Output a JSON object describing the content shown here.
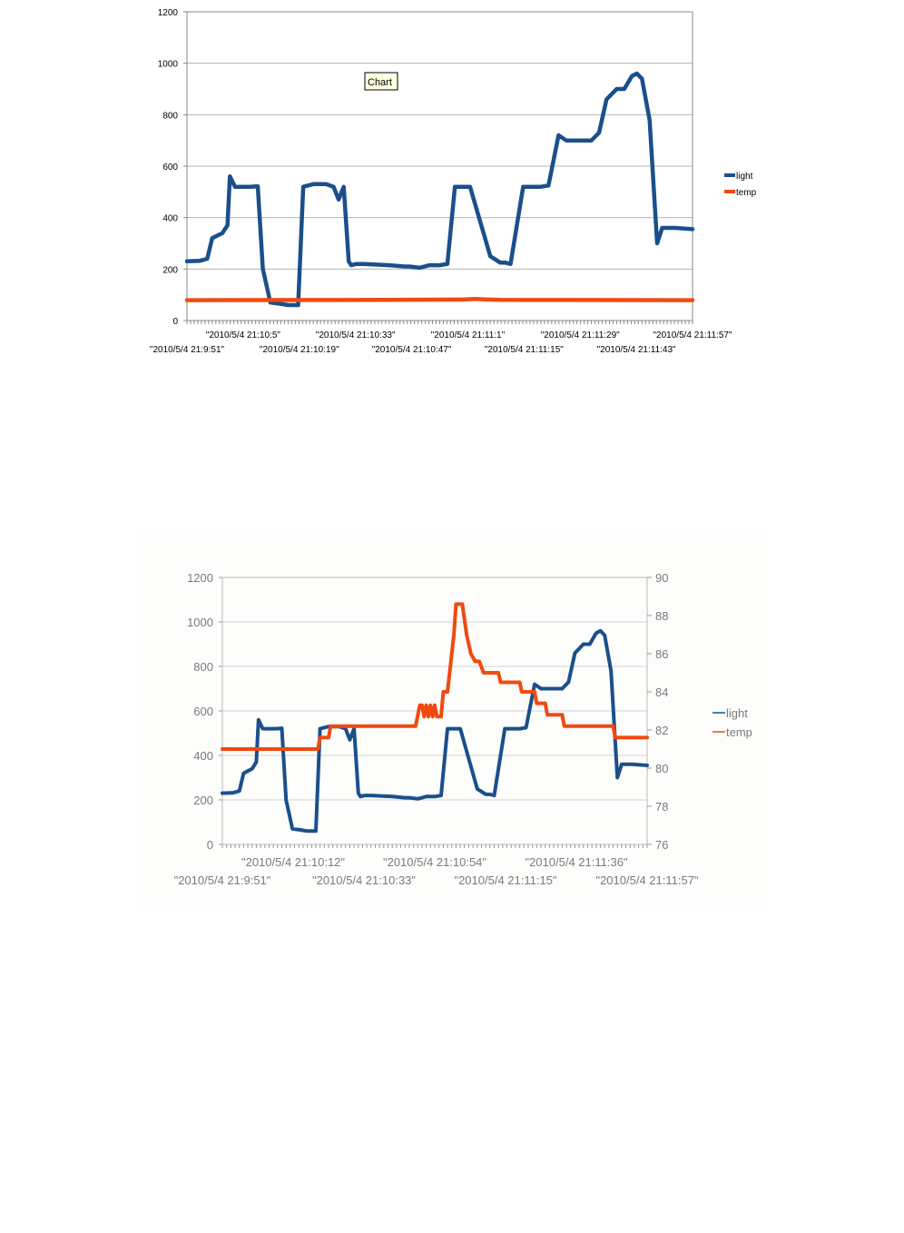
{
  "tooltip": "Chart",
  "chart_data": [
    {
      "type": "line",
      "axes": "single",
      "ylim": [
        0,
        1200
      ],
      "yticks": [
        0,
        200,
        400,
        600,
        800,
        1000,
        1200
      ],
      "grid": true,
      "legend_position": "right",
      "xtick_labels": [
        "\"2010/5/4 21:9:51\"",
        "\"2010/5/4 21:10:5\"",
        "\"2010/5/4 21:10:19\"",
        "\"2010/5/4 21:10:33\"",
        "\"2010/5/4 21:10:47\"",
        "\"2010/5/4 21:11:1\"",
        "\"2010/5/4 21:11:15\"",
        "\"2010/5/4 21:11:29\"",
        "\"2010/5/4 21:11:43\"",
        "\"2010/5/4 21:11:57\""
      ],
      "series": [
        {
          "name": "light",
          "color": "#1b4f8c",
          "x": [
            0,
            5,
            8,
            10,
            14,
            16,
            17,
            19,
            25,
            28,
            30,
            33,
            37,
            40,
            44,
            46,
            50,
            55,
            58,
            60,
            62,
            64,
            65,
            67,
            68,
            70,
            80,
            86,
            88,
            92,
            96,
            100,
            103,
            106,
            112,
            120,
            124,
            126,
            128,
            133,
            137,
            140,
            143,
            147,
            150,
            153,
            156,
            160,
            163,
            166,
            170,
            173,
            176,
            178,
            180,
            183,
            186,
            188,
            193,
            200
          ],
          "values": [
            230,
            232,
            240,
            320,
            340,
            370,
            560,
            520,
            520,
            522,
            200,
            70,
            65,
            60,
            60,
            520,
            530,
            530,
            520,
            470,
            520,
            230,
            215,
            220,
            220,
            220,
            215,
            210,
            210,
            205,
            215,
            215,
            220,
            520,
            520,
            250,
            225,
            225,
            220,
            520,
            520,
            520,
            525,
            720,
            700,
            700,
            700,
            700,
            730,
            860,
            900,
            900,
            950,
            960,
            940,
            780,
            300,
            360,
            360,
            355
          ]
        },
        {
          "name": "temp",
          "color": "#f04a10",
          "x": [
            0,
            80,
            110,
            114,
            118,
            124,
            200
          ],
          "values": [
            79,
            80,
            82,
            84,
            82,
            80,
            79
          ]
        }
      ]
    },
    {
      "type": "line",
      "axes": "dual",
      "ylim": [
        0,
        1200
      ],
      "y2lim": [
        76,
        90
      ],
      "yticks": [
        0,
        200,
        400,
        600,
        800,
        1000,
        1200
      ],
      "y2ticks": [
        76,
        78,
        80,
        82,
        84,
        86,
        88,
        90
      ],
      "grid": true,
      "legend_position": "right",
      "xtick_labels": [
        "\"2010/5/4 21:9:51\"",
        "\"2010/5/4 21:10:12\"",
        "\"2010/5/4 21:10:33\"",
        "\"2010/5/4 21:10:54\"",
        "\"2010/5/4 21:11:15\"",
        "\"2010/5/4 21:11:36\"",
        "\"2010/5/4 21:11:57\""
      ],
      "series": [
        {
          "name": "light",
          "color": "#1b4f8c",
          "x": [
            0,
            5,
            8,
            10,
            14,
            16,
            17,
            19,
            25,
            28,
            30,
            33,
            37,
            40,
            44,
            46,
            50,
            55,
            58,
            60,
            62,
            64,
            65,
            67,
            68,
            70,
            80,
            86,
            88,
            92,
            96,
            100,
            103,
            106,
            112,
            120,
            124,
            126,
            128,
            133,
            137,
            140,
            143,
            147,
            150,
            153,
            156,
            160,
            163,
            166,
            170,
            173,
            176,
            178,
            180,
            183,
            186,
            188,
            193,
            200
          ],
          "values": [
            230,
            232,
            240,
            320,
            340,
            370,
            560,
            520,
            520,
            522,
            200,
            70,
            65,
            60,
            60,
            520,
            530,
            530,
            520,
            470,
            520,
            230,
            215,
            220,
            220,
            220,
            215,
            210,
            210,
            205,
            215,
            215,
            220,
            520,
            520,
            250,
            225,
            225,
            220,
            520,
            520,
            520,
            525,
            720,
            700,
            700,
            700,
            700,
            730,
            860,
            900,
            900,
            950,
            960,
            940,
            780,
            300,
            360,
            360,
            355
          ]
        },
        {
          "name": "temp",
          "color": "#f04a10",
          "axis": "right",
          "x": [
            0,
            37,
            38,
            44,
            45,
            46,
            47,
            50,
            51,
            90,
            91,
            93,
            94,
            95,
            96,
            97,
            98,
            99,
            100,
            101,
            103,
            104,
            106,
            107,
            109,
            110,
            113,
            115,
            117,
            119,
            121,
            123,
            125,
            126,
            130,
            131,
            140,
            141,
            147,
            148,
            152,
            153,
            160,
            161,
            172,
            173,
            184,
            185,
            200
          ],
          "values": [
            81.0,
            81.0,
            81.0,
            81.0,
            81.0,
            81.6,
            81.6,
            81.6,
            82.2,
            82.2,
            82.2,
            83.3,
            83.3,
            82.7,
            83.3,
            82.7,
            83.3,
            82.7,
            83.3,
            82.7,
            82.7,
            84.0,
            84.0,
            85.0,
            87.0,
            88.6,
            88.6,
            87.0,
            86.0,
            85.6,
            85.6,
            85.0,
            85.0,
            85.0,
            85.0,
            84.5,
            84.5,
            84.0,
            84.0,
            83.4,
            83.4,
            82.8,
            82.8,
            82.2,
            82.2,
            82.2,
            82.2,
            81.6,
            81.6
          ]
        }
      ]
    }
  ]
}
